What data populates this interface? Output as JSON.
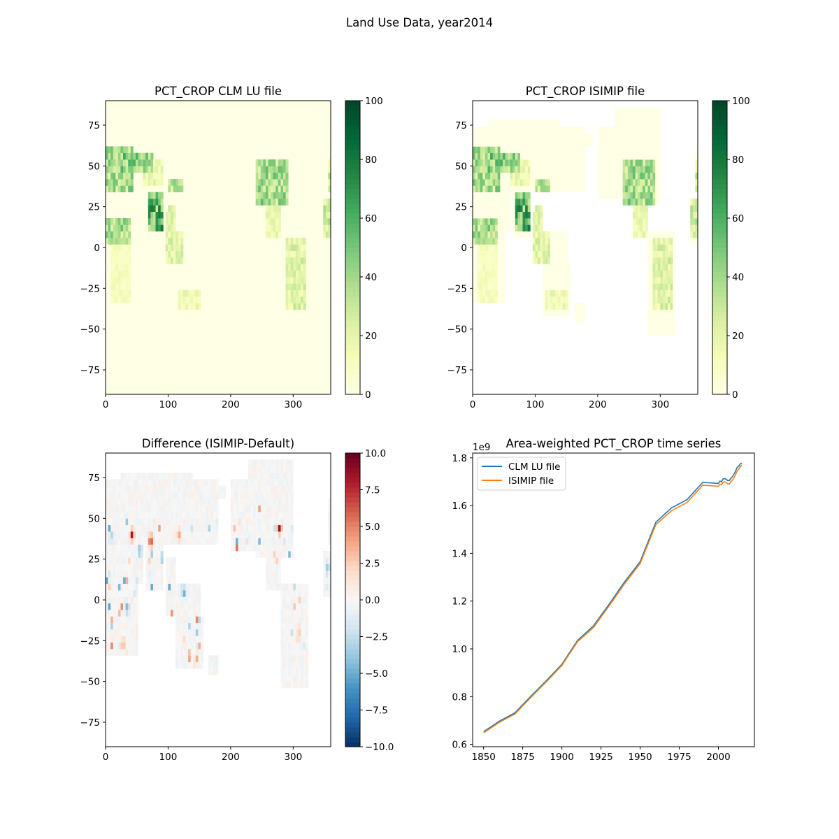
{
  "figure": {
    "suptitle": "Land Use Data, year2014"
  },
  "colormaps": {
    "YlGn": [
      "#ffffe5",
      "#f7fcb9",
      "#d9f0a3",
      "#addd8e",
      "#78c679",
      "#41ab5d",
      "#238443",
      "#006837",
      "#004529"
    ],
    "RdBu_r": [
      "#053061",
      "#2166ac",
      "#4393c3",
      "#92c5de",
      "#d1e5f0",
      "#f7f7f7",
      "#fddbc7",
      "#f4a582",
      "#d6604d",
      "#b2182b",
      "#67001f"
    ]
  },
  "chart_data": [
    {
      "type": "heatmap",
      "title": "PCT_CROP CLM LU file",
      "xlim": [
        0,
        360
      ],
      "ylim": [
        -90,
        90
      ],
      "x_ticks": [
        "0",
        "100",
        "200",
        "300"
      ],
      "y_ticks": [
        "75",
        "50",
        "25",
        "0",
        "−25",
        "−50",
        "−75"
      ],
      "colorbar": {
        "cmap": "YlGn",
        "range": [
          0,
          100
        ],
        "ticks": [
          "0",
          "20",
          "40",
          "60",
          "80",
          "100"
        ]
      },
      "ocean": "fill_zero",
      "regions": [
        {
          "name": "europe",
          "lon": [
            0,
            45
          ],
          "lat": [
            35,
            62
          ],
          "v": 40
        },
        {
          "name": "europe-east",
          "lon": [
            25,
            75
          ],
          "lat": [
            45,
            58
          ],
          "v": 50
        },
        {
          "name": "central-asia",
          "lon": [
            60,
            90
          ],
          "lat": [
            38,
            55
          ],
          "v": 18
        },
        {
          "name": "india",
          "lon": [
            68,
            90
          ],
          "lat": [
            10,
            32
          ],
          "v": 62
        },
        {
          "name": "china",
          "lon": [
            100,
            122
          ],
          "lat": [
            22,
            42
          ],
          "v": 35
        },
        {
          "name": "se-asia",
          "lon": [
            95,
            125
          ],
          "lat": [
            -8,
            20
          ],
          "v": 22
        },
        {
          "name": "west-africa",
          "lon": [
            0,
            40
          ],
          "lat": [
            4,
            18
          ],
          "v": 40
        },
        {
          "name": "africa",
          "lon": [
            10,
            40
          ],
          "lat": [
            -32,
            4
          ],
          "v": 12
        },
        {
          "name": "australia-east",
          "lon": [
            115,
            152
          ],
          "lat": [
            -38,
            -25
          ],
          "v": 18
        },
        {
          "name": "north-america",
          "lon": [
            240,
            290
          ],
          "lat": [
            28,
            55
          ],
          "v": 42
        },
        {
          "name": "central-america",
          "lon": [
            255,
            280
          ],
          "lat": [
            8,
            25
          ],
          "v": 18
        },
        {
          "name": "south-america",
          "lon": [
            290,
            320
          ],
          "lat": [
            -38,
            5
          ],
          "v": 24
        },
        {
          "name": "east-edge",
          "lon": [
            350,
            360
          ],
          "lat": [
            5,
            55
          ],
          "v": 30
        }
      ]
    },
    {
      "type": "heatmap",
      "title": "PCT_CROP ISIMIP file",
      "xlim": [
        0,
        360
      ],
      "ylim": [
        -90,
        90
      ],
      "x_ticks": [
        "0",
        "100",
        "200",
        "300"
      ],
      "y_ticks": [
        "75",
        "50",
        "25",
        "0",
        "−25",
        "−50",
        "−75"
      ],
      "colorbar": {
        "cmap": "YlGn",
        "range": [
          0,
          100
        ],
        "ticks": [
          "0",
          "20",
          "40",
          "60",
          "80",
          "100"
        ]
      },
      "ocean": "blank",
      "regions": [
        {
          "name": "europe",
          "lon": [
            0,
            45
          ],
          "lat": [
            35,
            62
          ],
          "v": 40
        },
        {
          "name": "europe-east",
          "lon": [
            25,
            75
          ],
          "lat": [
            45,
            58
          ],
          "v": 50
        },
        {
          "name": "central-asia",
          "lon": [
            60,
            90
          ],
          "lat": [
            38,
            55
          ],
          "v": 18
        },
        {
          "name": "india",
          "lon": [
            68,
            90
          ],
          "lat": [
            10,
            32
          ],
          "v": 62
        },
        {
          "name": "china",
          "lon": [
            100,
            122
          ],
          "lat": [
            22,
            42
          ],
          "v": 35
        },
        {
          "name": "se-asia",
          "lon": [
            95,
            125
          ],
          "lat": [
            -8,
            20
          ],
          "v": 22
        },
        {
          "name": "west-africa",
          "lon": [
            0,
            40
          ],
          "lat": [
            4,
            18
          ],
          "v": 40
        },
        {
          "name": "africa",
          "lon": [
            10,
            40
          ],
          "lat": [
            -32,
            4
          ],
          "v": 12
        },
        {
          "name": "australia-east",
          "lon": [
            115,
            152
          ],
          "lat": [
            -38,
            -25
          ],
          "v": 18
        },
        {
          "name": "north-america",
          "lon": [
            240,
            290
          ],
          "lat": [
            28,
            55
          ],
          "v": 42
        },
        {
          "name": "central-america",
          "lon": [
            255,
            280
          ],
          "lat": [
            8,
            25
          ],
          "v": 18
        },
        {
          "name": "south-america",
          "lon": [
            290,
            320
          ],
          "lat": [
            -38,
            5
          ],
          "v": 24
        },
        {
          "name": "east-edge",
          "lon": [
            350,
            360
          ],
          "lat": [
            5,
            55
          ],
          "v": 30
        }
      ]
    },
    {
      "type": "heatmap",
      "title": "Difference (ISIMIP-Default)",
      "xlim": [
        0,
        360
      ],
      "ylim": [
        -90,
        90
      ],
      "x_ticks": [
        "0",
        "100",
        "200",
        "300"
      ],
      "y_ticks": [
        "75",
        "50",
        "25",
        "0",
        "−25",
        "−50",
        "−75"
      ],
      "colorbar": {
        "cmap": "RdBu_r",
        "range": [
          -10,
          10
        ],
        "ticks": [
          "−10.0",
          "−7.5",
          "−5.0",
          "−2.5",
          "0.0",
          "2.5",
          "5.0",
          "7.5",
          "10.0"
        ]
      },
      "ocean": "blank",
      "hotspots": [
        {
          "lon": 73,
          "lat": 36,
          "v": 10
        },
        {
          "lon": 42,
          "lat": 40,
          "v": 9
        },
        {
          "lon": 28,
          "lat": -26,
          "v": 5
        },
        {
          "lon": 308,
          "lat": -20,
          "v": 6
        },
        {
          "lon": 278,
          "lat": 44,
          "v": 9
        },
        {
          "lon": 92,
          "lat": 28,
          "v": 4
        },
        {
          "lon": 145,
          "lat": -36,
          "v": 4
        },
        {
          "lon": 10,
          "lat": 38,
          "v": -7
        },
        {
          "lon": 55,
          "lat": 30,
          "v": -6
        },
        {
          "lon": 125,
          "lat": 5,
          "v": -7
        },
        {
          "lon": 35,
          "lat": -5,
          "v": -6
        },
        {
          "lon": 355,
          "lat": 20,
          "v": -5
        },
        {
          "lon": 118,
          "lat": 40,
          "v": 4
        }
      ]
    },
    {
      "type": "line",
      "title": "Area-weighted PCT_CROP time series",
      "xlim": [
        1843,
        2023
      ],
      "ylim": [
        0.59,
        1.82
      ],
      "x_ticks": [
        1850,
        1875,
        1900,
        1925,
        1950,
        1975,
        2000
      ],
      "y_ticks": [
        "0.6",
        "0.8",
        "1.0",
        "1.2",
        "1.4",
        "1.6",
        "1.8"
      ],
      "y_scale_label": "1e9",
      "legend": "top-left",
      "x": [
        1850,
        1860,
        1870,
        1880,
        1890,
        1900,
        1910,
        1920,
        1930,
        1940,
        1950,
        1960,
        1970,
        1980,
        1990,
        2000,
        2001,
        2002,
        2003,
        2004,
        2005,
        2006,
        2007,
        2008,
        2009,
        2010,
        2011,
        2012,
        2013,
        2014,
        2015
      ],
      "series": [
        {
          "name": "CLM LU file",
          "color": "#1f77b4",
          "values": [
            0.653,
            0.697,
            0.732,
            0.8,
            0.866,
            0.935,
            1.035,
            1.095,
            1.185,
            1.28,
            1.365,
            1.53,
            1.59,
            1.625,
            1.697,
            1.693,
            1.703,
            1.7,
            1.712,
            1.713,
            1.71,
            1.705,
            1.705,
            1.715,
            1.722,
            1.732,
            1.745,
            1.76,
            1.765,
            1.775,
            1.778
          ]
        },
        {
          "name": "ISIMIP file",
          "color": "#ff7f0e",
          "values": [
            0.648,
            0.692,
            0.727,
            0.795,
            0.861,
            0.93,
            1.03,
            1.088,
            1.178,
            1.272,
            1.357,
            1.52,
            1.578,
            1.613,
            1.686,
            1.681,
            1.69,
            1.688,
            1.698,
            1.7,
            1.696,
            1.692,
            1.69,
            1.7,
            1.708,
            1.716,
            1.73,
            1.745,
            1.752,
            1.763,
            1.77
          ]
        }
      ]
    }
  ]
}
